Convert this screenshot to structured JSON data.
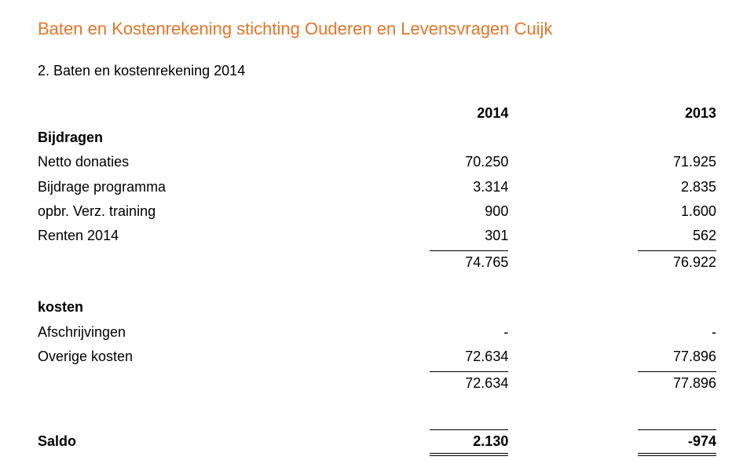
{
  "colors": {
    "title": "#e67528",
    "text": "#000000",
    "background": "#ffffff",
    "rule": "#000000"
  },
  "typography": {
    "family": "Verdana",
    "title_size_pt": 17,
    "body_size_pt": 14
  },
  "title": "Baten en Kostenrekening stichting Ouderen en Levensvragen Cuijk",
  "section_heading": "2. Baten en kostenrekening 2014",
  "table": {
    "year_headers": [
      "2014",
      "2013"
    ],
    "groups": [
      {
        "header": "Bijdragen",
        "rows": [
          {
            "label": "Netto donaties",
            "v1": "70.250",
            "v2": "71.925"
          },
          {
            "label": "Bijdrage programma",
            "v1": "3.314",
            "v2": "2.835"
          },
          {
            "label": "opbr. Verz. training",
            "v1": "900",
            "v2": "1.600"
          },
          {
            "label": "Renten 2014",
            "v1": "301",
            "v2": "562"
          }
        ],
        "subtotal": {
          "v1": "74.765",
          "v2": "76.922"
        }
      },
      {
        "header": "kosten",
        "rows": [
          {
            "label": "Afschrijvingen",
            "v1": "-",
            "v2": "-"
          },
          {
            "label": "Overige kosten",
            "v1": "72.634",
            "v2": "77.896"
          }
        ],
        "subtotal": {
          "v1": "72.634",
          "v2": "77.896"
        }
      }
    ],
    "saldo": {
      "label": "Saldo",
      "v1": "2.130",
      "v2": "-974"
    }
  }
}
